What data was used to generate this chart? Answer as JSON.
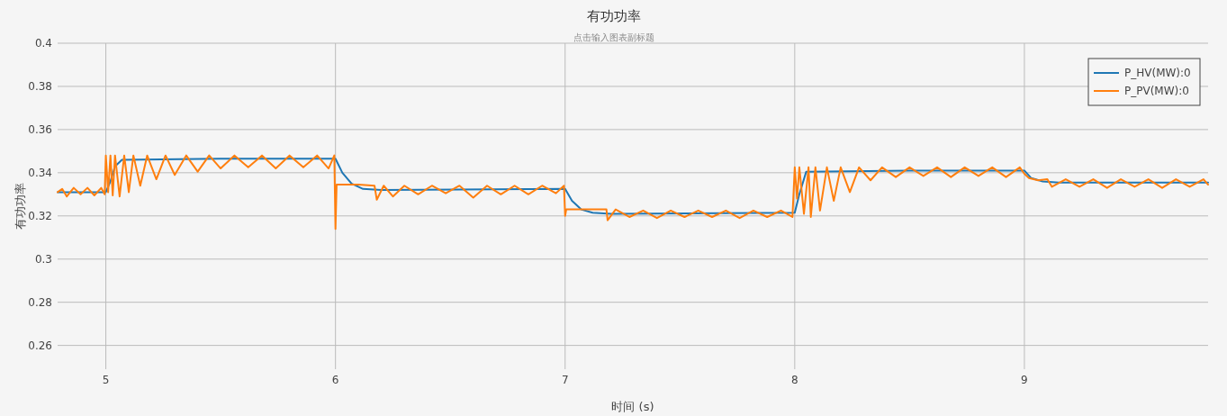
{
  "chart_data": {
    "type": "line",
    "title": "有功功率",
    "subtitle": "点击输入图表副标题",
    "xlabel": "时间 (s)",
    "ylabel": "有功功率",
    "xlim": [
      4.79,
      9.8
    ],
    "ylim": [
      0.249,
      0.4
    ],
    "xticks": [
      5,
      6,
      7,
      8,
      9
    ],
    "yticks": [
      0.26,
      0.28,
      0.3,
      0.32,
      0.34,
      0.36,
      0.38,
      0.4
    ],
    "grid": true,
    "legend": "top right",
    "marker": "none",
    "series": [
      {
        "name": "P_HV(MW):0",
        "color": "#1f77b4",
        "x": [
          4.79,
          5.0,
          5.02,
          5.04,
          5.07,
          5.5,
          6.0,
          6.03,
          6.07,
          6.12,
          6.2,
          7.0,
          7.03,
          7.07,
          7.12,
          7.2,
          8.0,
          8.02,
          8.05,
          8.5,
          9.0,
          9.03,
          9.08,
          9.15,
          9.8
        ],
        "values": [
          0.331,
          0.331,
          0.336,
          0.343,
          0.346,
          0.3465,
          0.3465,
          0.34,
          0.335,
          0.3325,
          0.332,
          0.3325,
          0.327,
          0.323,
          0.3215,
          0.321,
          0.3215,
          0.33,
          0.3405,
          0.341,
          0.341,
          0.3375,
          0.336,
          0.3355,
          0.3355
        ]
      },
      {
        "name": "P_PV(MW):0",
        "color": "#ff7f0e",
        "x": [
          4.79,
          4.81,
          4.83,
          4.86,
          4.89,
          4.92,
          4.95,
          4.98,
          4.995,
          5.0,
          5.01,
          5.02,
          5.03,
          5.04,
          5.06,
          5.08,
          5.1,
          5.12,
          5.15,
          5.18,
          5.22,
          5.26,
          5.3,
          5.35,
          5.4,
          5.45,
          5.5,
          5.56,
          5.62,
          5.68,
          5.74,
          5.8,
          5.86,
          5.92,
          5.97,
          5.995,
          6.0,
          6.005,
          6.1,
          6.17,
          6.18,
          6.21,
          6.25,
          6.3,
          6.36,
          6.42,
          6.48,
          6.54,
          6.6,
          6.66,
          6.72,
          6.78,
          6.84,
          6.9,
          6.96,
          6.995,
          7.0,
          7.005,
          7.18,
          7.185,
          7.22,
          7.28,
          7.34,
          7.4,
          7.46,
          7.52,
          7.58,
          7.64,
          7.7,
          7.76,
          7.82,
          7.88,
          7.94,
          7.99,
          8.0,
          8.01,
          8.02,
          8.04,
          8.06,
          8.07,
          8.09,
          8.11,
          8.14,
          8.17,
          8.2,
          8.24,
          8.28,
          8.33,
          8.38,
          8.44,
          8.5,
          8.56,
          8.62,
          8.68,
          8.74,
          8.8,
          8.86,
          8.92,
          8.98,
          9.0,
          9.02,
          9.06,
          9.1,
          9.12,
          9.18,
          9.24,
          9.3,
          9.36,
          9.42,
          9.48,
          9.54,
          9.6,
          9.66,
          9.72,
          9.78,
          9.8
        ],
        "values": [
          0.331,
          0.3325,
          0.329,
          0.333,
          0.33,
          0.333,
          0.3295,
          0.333,
          0.33,
          0.348,
          0.331,
          0.348,
          0.3295,
          0.348,
          0.329,
          0.348,
          0.331,
          0.348,
          0.334,
          0.348,
          0.337,
          0.348,
          0.339,
          0.348,
          0.3405,
          0.348,
          0.342,
          0.348,
          0.3425,
          0.348,
          0.342,
          0.348,
          0.3425,
          0.348,
          0.342,
          0.348,
          0.314,
          0.3345,
          0.3345,
          0.334,
          0.3275,
          0.334,
          0.329,
          0.334,
          0.33,
          0.334,
          0.3305,
          0.334,
          0.3285,
          0.334,
          0.33,
          0.334,
          0.33,
          0.334,
          0.3305,
          0.334,
          0.32,
          0.323,
          0.323,
          0.318,
          0.323,
          0.3195,
          0.3225,
          0.319,
          0.3225,
          0.3195,
          0.3225,
          0.3195,
          0.3225,
          0.319,
          0.3225,
          0.3195,
          0.3225,
          0.3195,
          0.3425,
          0.328,
          0.3425,
          0.321,
          0.3425,
          0.3195,
          0.3425,
          0.3225,
          0.3425,
          0.327,
          0.3425,
          0.331,
          0.3425,
          0.3365,
          0.3425,
          0.338,
          0.3425,
          0.3385,
          0.3425,
          0.338,
          0.3425,
          0.3385,
          0.3425,
          0.338,
          0.3425,
          0.3395,
          0.3375,
          0.3365,
          0.337,
          0.3335,
          0.337,
          0.3335,
          0.337,
          0.333,
          0.337,
          0.3335,
          0.337,
          0.333,
          0.337,
          0.3335,
          0.337,
          0.3345
        ]
      }
    ]
  }
}
